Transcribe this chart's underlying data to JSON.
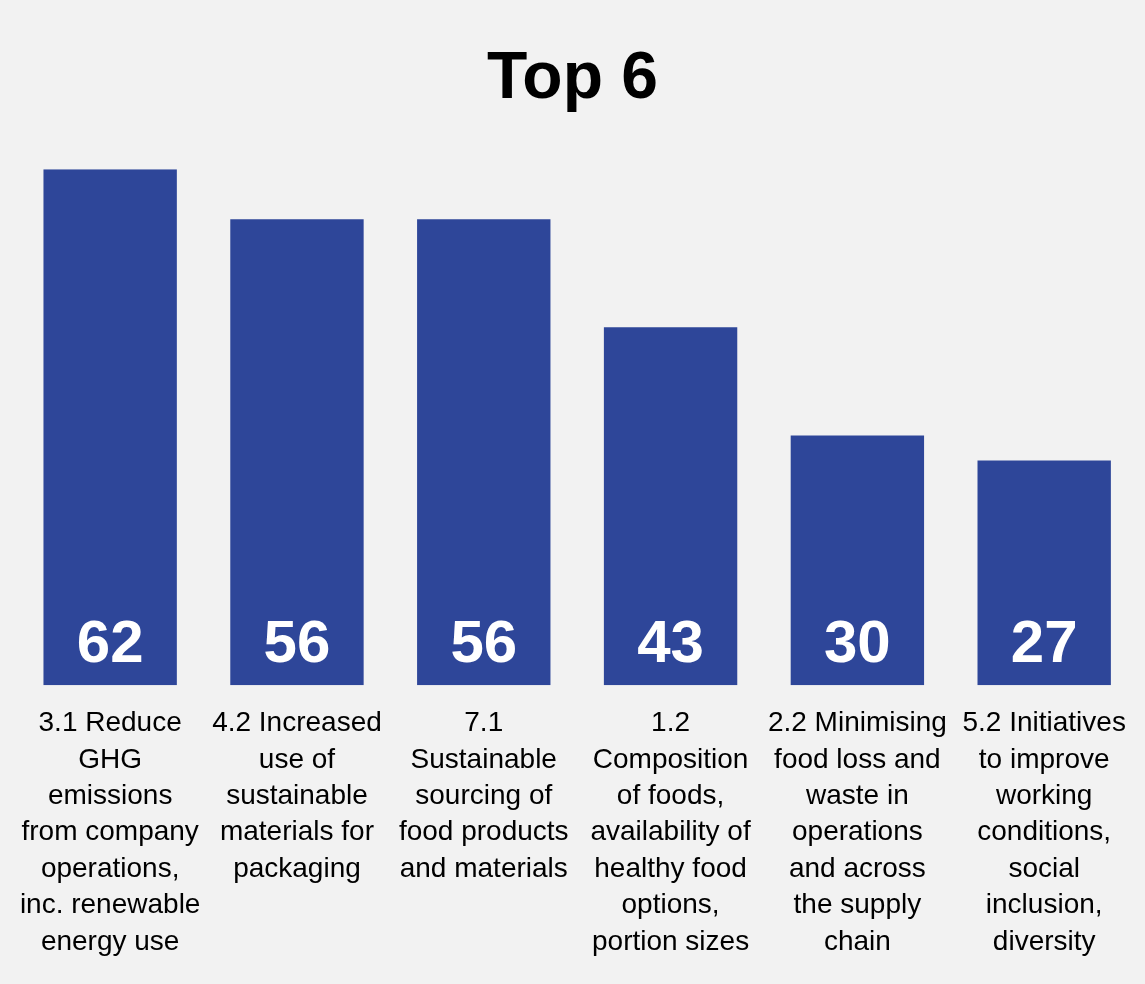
{
  "chart_data": {
    "type": "bar",
    "title": "Top 6",
    "categories": [
      "3.1 Reduce GHG emissions from company operations, inc. renewable energy use",
      "4.2 Increased use of sustainable materials for packaging",
      "7.1 Sustainable sourcing of food products and materials",
      "1.2 Composition of foods, availability of healthy food options, portion sizes",
      "2.2 Minimising food loss and waste in operations and across the supply chain",
      "5.2 Initiatives to improve working conditions, social inclusion, diversity"
    ],
    "values": [
      62,
      56,
      56,
      43,
      30,
      27
    ],
    "color": "#2e4699",
    "data_labels": true,
    "grid": false,
    "legend": false
  }
}
